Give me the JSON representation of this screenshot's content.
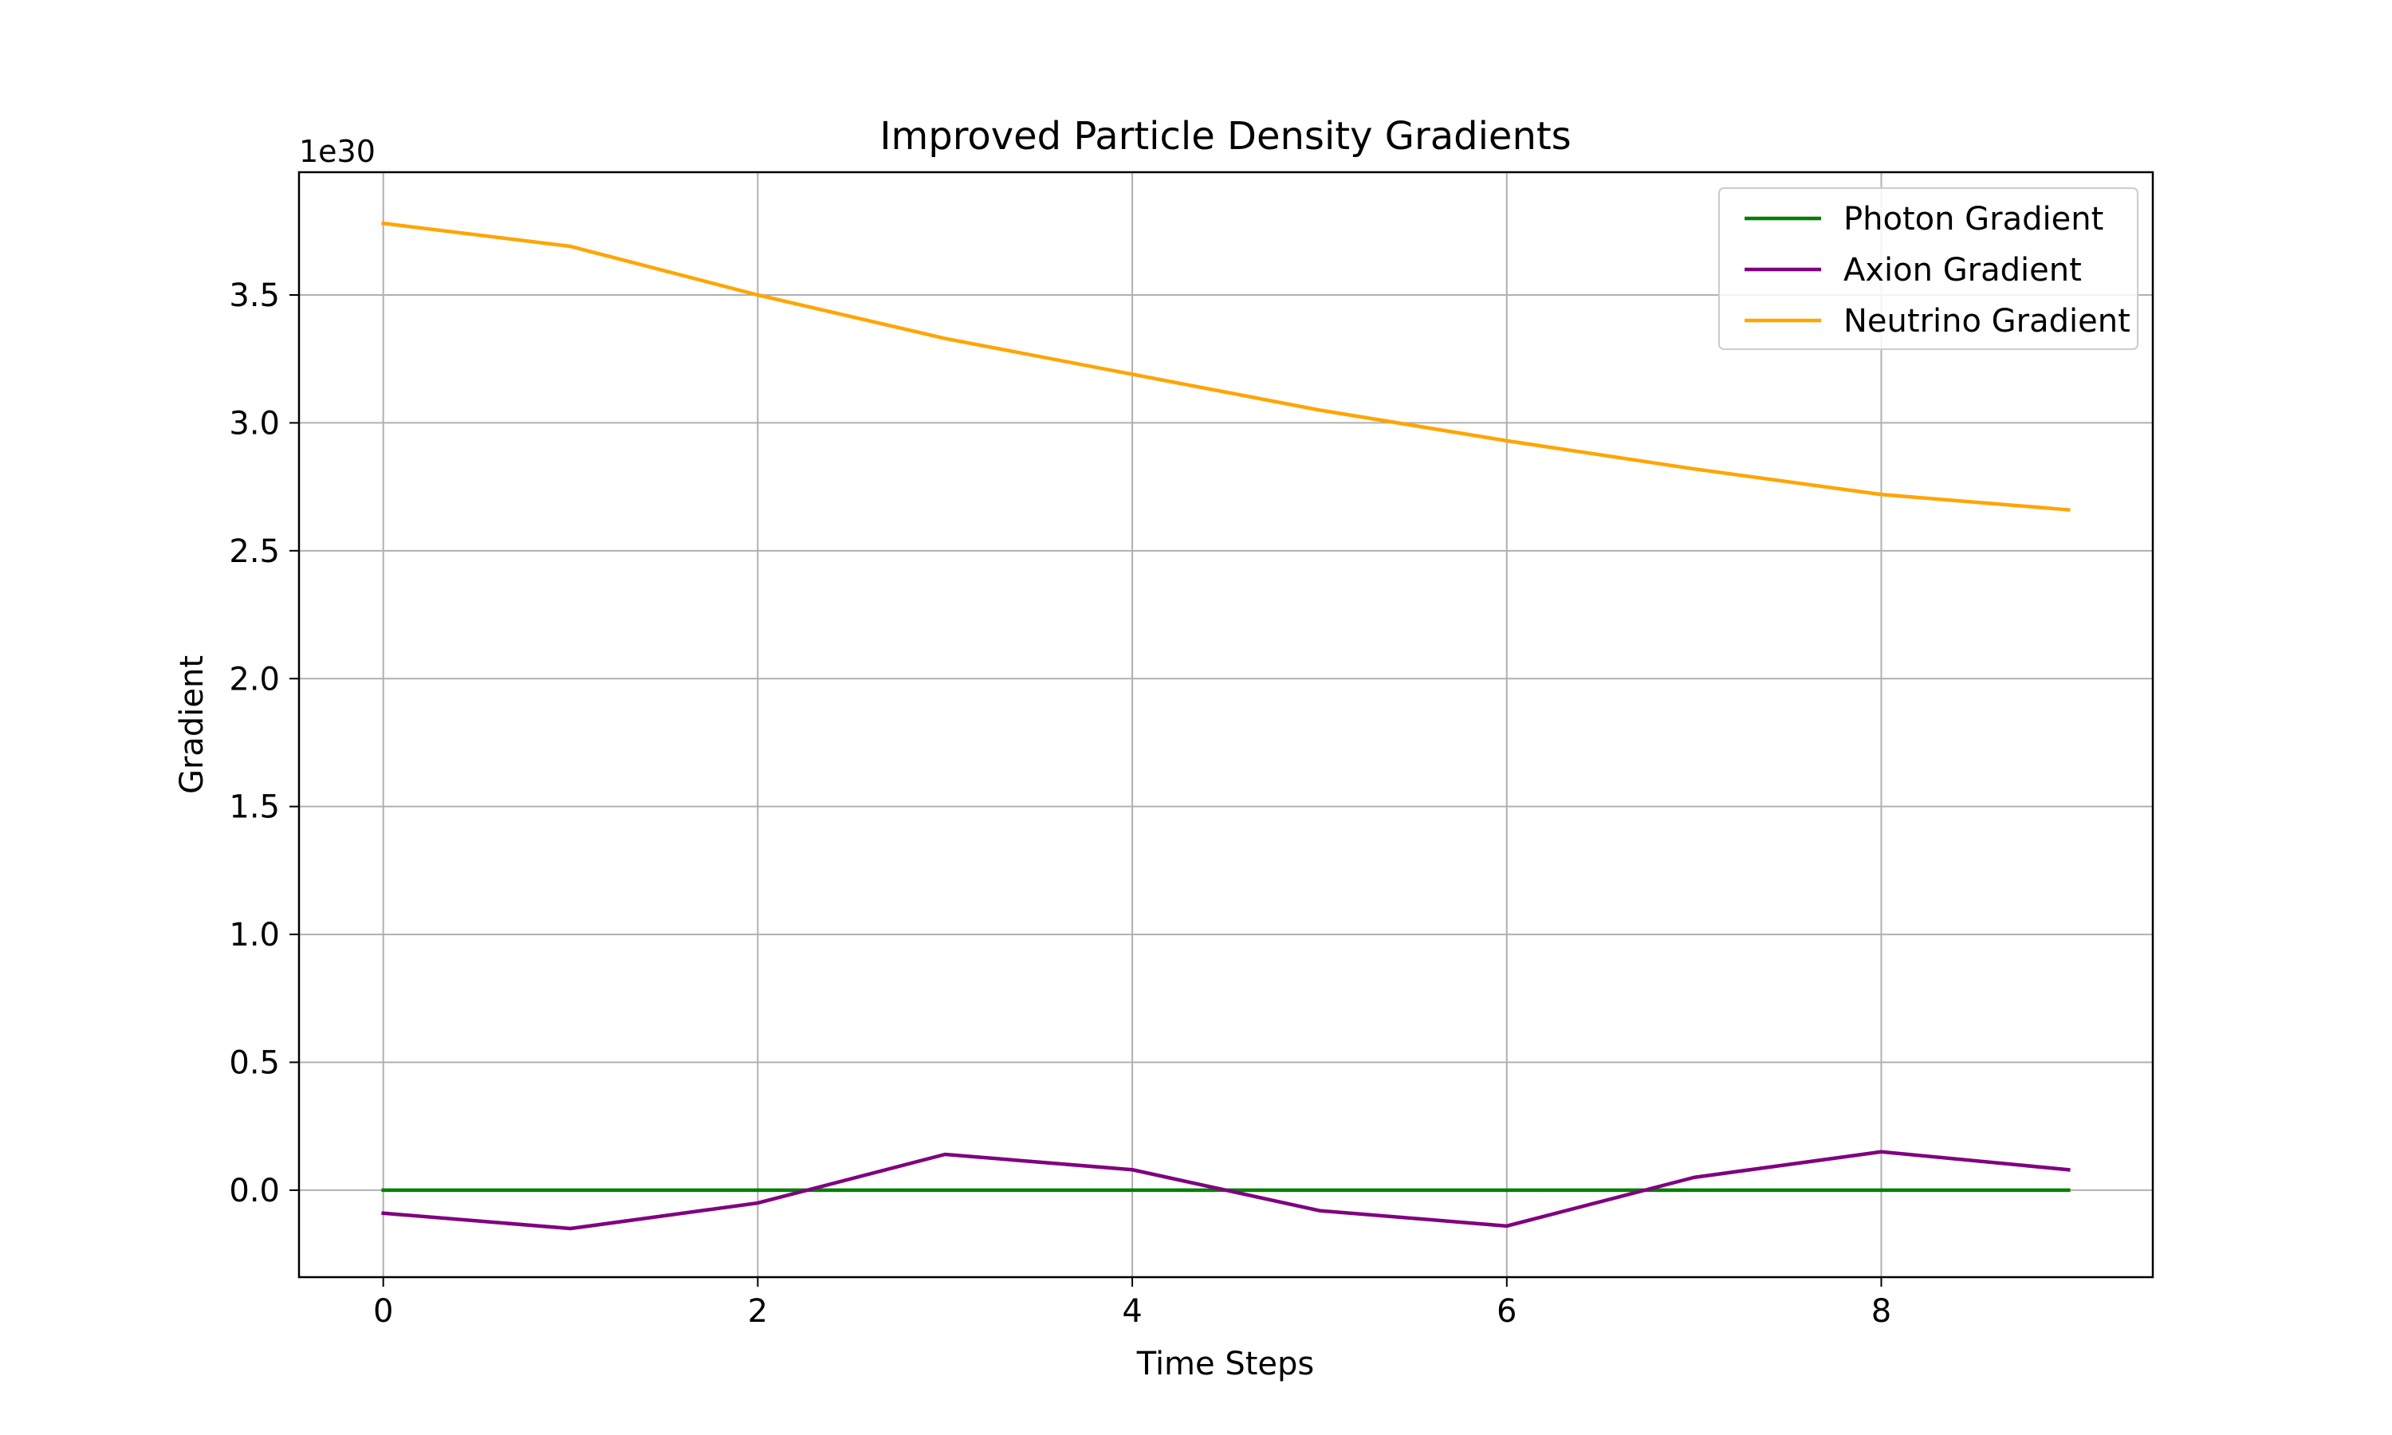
{
  "chart_data": {
    "type": "line",
    "title": "Improved Particle Density Gradients",
    "xlabel": "Time Steps",
    "ylabel": "Gradient",
    "y_offset_label": "1e30",
    "x": [
      0,
      1,
      2,
      3,
      4,
      5,
      6,
      7,
      8,
      9
    ],
    "xlim": [
      -0.45,
      9.45
    ],
    "ylim": [
      -0.34,
      3.98
    ],
    "xticks": [
      0,
      2,
      4,
      6,
      8
    ],
    "xtick_labels": [
      "0",
      "2",
      "4",
      "6",
      "8"
    ],
    "yticks": [
      0.0,
      0.5,
      1.0,
      1.5,
      2.0,
      2.5,
      3.0,
      3.5
    ],
    "ytick_labels": [
      "0.0",
      "0.5",
      "1.0",
      "1.5",
      "2.0",
      "2.5",
      "3.0",
      "3.5"
    ],
    "grid": true,
    "legend_position": "top-right",
    "series": [
      {
        "name": "Photon Gradient",
        "color": "#008000",
        "values": [
          0,
          0,
          0,
          0,
          0,
          0,
          0,
          0,
          0,
          0
        ]
      },
      {
        "name": "Axion Gradient",
        "color": "#800080",
        "values": [
          -0.09,
          -0.15,
          -0.05,
          0.14,
          0.08,
          -0.08,
          -0.14,
          0.05,
          0.15,
          0.08
        ]
      },
      {
        "name": "Neutrino Gradient",
        "color": "#FFA500",
        "values": [
          3.78,
          3.69,
          3.5,
          3.33,
          3.19,
          3.05,
          2.93,
          2.82,
          2.72,
          2.66
        ]
      }
    ]
  }
}
